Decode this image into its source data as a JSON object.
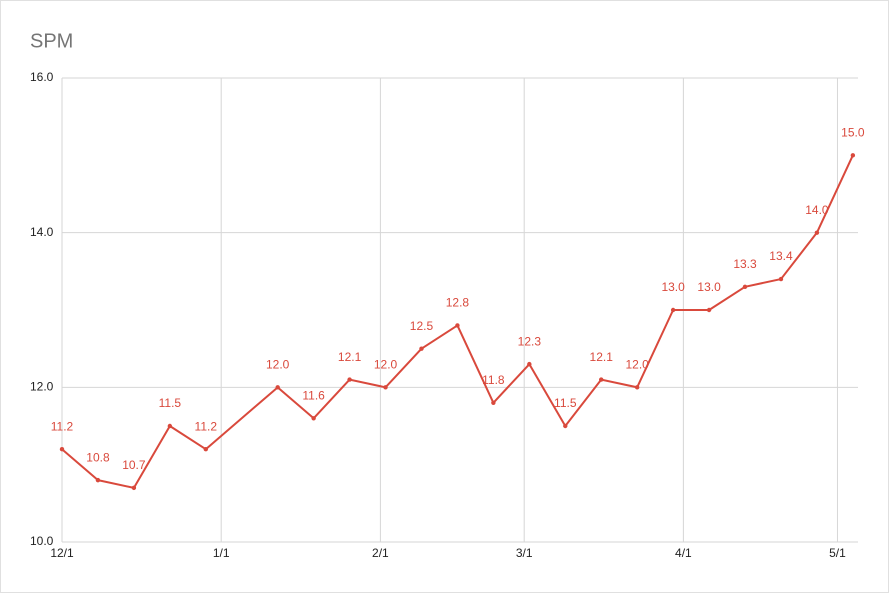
{
  "chart_data": {
    "type": "line",
    "title": "SPM",
    "x": [
      0,
      7,
      14,
      21,
      28,
      42,
      49,
      56,
      63,
      70,
      77,
      84,
      91,
      98,
      105,
      112,
      119,
      126,
      133,
      140,
      147,
      154
    ],
    "series": [
      {
        "color": "#d9493c",
        "values": [
          11.2,
          10.8,
          10.7,
          11.5,
          11.2,
          12.0,
          11.6,
          12.1,
          12.0,
          12.5,
          12.8,
          11.8,
          12.3,
          11.5,
          12.1,
          12.0,
          13.0,
          13.0,
          13.3,
          13.4,
          14.0,
          15.0
        ],
        "value_labels": [
          "11.2",
          "10.8",
          "10.7",
          "11.5",
          "11.2",
          "12.0",
          "11.6",
          "12.1",
          "12.0",
          "12.5",
          "12.8",
          "11.8",
          "12.3",
          "11.5",
          "12.1",
          "12.0",
          "13.0",
          "13.0",
          "13.3",
          "13.4",
          "14.0",
          "15.0"
        ]
      }
    ],
    "xlim": [
      0,
      155
    ],
    "xticks": [
      {
        "value": 0,
        "label": "12/1"
      },
      {
        "value": 31,
        "label": "1/1"
      },
      {
        "value": 62,
        "label": "2/1"
      },
      {
        "value": 90,
        "label": "3/1"
      },
      {
        "value": 121,
        "label": "4/1"
      },
      {
        "value": 151,
        "label": "5/1"
      }
    ],
    "ylim": [
      10,
      16
    ],
    "yticks": [
      {
        "value": 10,
        "label": "10.0"
      },
      {
        "value": 12,
        "label": "12.0"
      },
      {
        "value": 14,
        "label": "14.0"
      },
      {
        "value": 16,
        "label": "16.0"
      }
    ],
    "grid": true
  }
}
